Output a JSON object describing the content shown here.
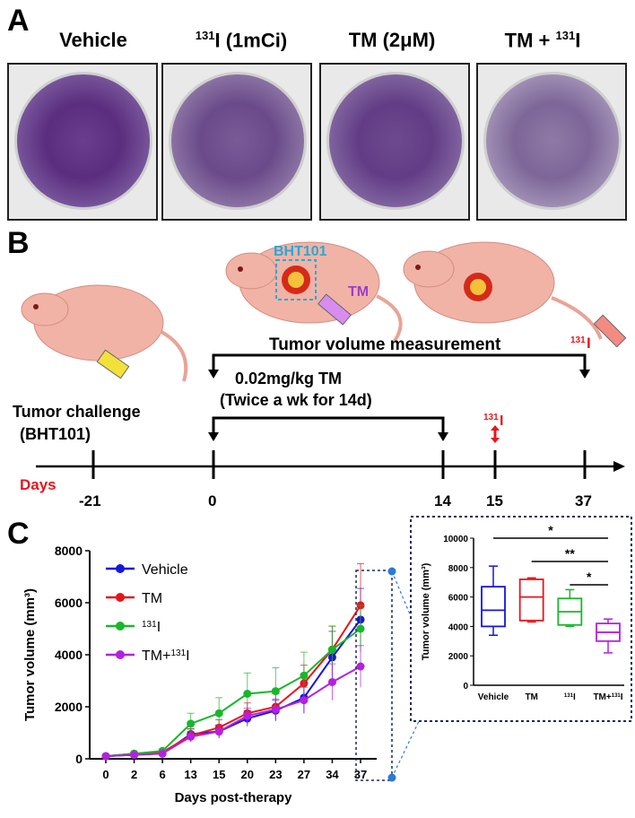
{
  "panelA": {
    "letter": "A",
    "columns": [
      {
        "title": "Vehicle",
        "sup": "",
        "post": ""
      },
      {
        "title": "",
        "sup": "131",
        "post": "I (1mCi)"
      },
      {
        "title": "TM (2μM)",
        "sup": "",
        "post": ""
      },
      {
        "title": "TM + ",
        "sup": "131",
        "post": "I"
      }
    ]
  },
  "panelB": {
    "letter": "B",
    "bht_label": "BHT101",
    "tm_label": "TM",
    "i131_mouse_sup": "131",
    "i131_mouse_post": "I",
    "measurement_label": "Tumor volume measurement",
    "dose_line1": "0.02mg/kg TM",
    "dose_line2": "(Twice a wk for 14d)",
    "challenge_line1": "Tumor challenge",
    "challenge_line2": "(BHT101)",
    "i131_arrow_sup": "131",
    "i131_arrow_post": "I",
    "days_label": "Days",
    "ticks": [
      "-21",
      "0",
      "14",
      "15",
      "37"
    ],
    "colors": {
      "days": "#e8141c",
      "bht": "#27a9d6",
      "tm": "#9b3fc8",
      "i131": "#e8141c"
    }
  },
  "panelC": {
    "letter": "C",
    "chart_data": [
      {
        "type": "line",
        "xlabel": "Days post-therapy",
        "ylabel": "Tumor volume (mm³)",
        "x": [
          0,
          2,
          6,
          13,
          15,
          20,
          23,
          27,
          34,
          37
        ],
        "ylim": [
          0,
          8000
        ],
        "yticks": [
          0,
          2000,
          4000,
          6000,
          8000
        ],
        "grid": false,
        "legend_position": "top-left",
        "series": [
          {
            "name": "Vehicle",
            "name_sup": "",
            "name_post": "",
            "color": "#1515e0",
            "values": [
              100,
              150,
              200,
              950,
              1050,
              1550,
              1850,
              2350,
              3900,
              5350
            ],
            "errors": [
              30,
              50,
              60,
              200,
              250,
              300,
              400,
              600,
              1000,
              1200
            ]
          },
          {
            "name": "TM",
            "name_sup": "",
            "name_post": "",
            "color": "#e8141c",
            "values": [
              100,
              200,
              250,
              900,
              1200,
              1750,
              2000,
              2900,
              4200,
              5900
            ],
            "errors": [
              30,
              50,
              60,
              250,
              300,
              400,
              500,
              700,
              900,
              1600
            ]
          },
          {
            "name": "",
            "name_sup": "131",
            "name_post": "I",
            "color": "#17b82a",
            "values": [
              100,
              200,
              300,
              1350,
              1750,
              2500,
              2600,
              3200,
              4200,
              5000
            ],
            "errors": [
              30,
              50,
              80,
              400,
              600,
              800,
              900,
              900,
              900,
              900
            ]
          },
          {
            "name": "TM+",
            "name_sup": "131",
            "name_post": "I",
            "color": "#b520e0",
            "values": [
              100,
              150,
              200,
              850,
              1050,
              1650,
              1900,
              2250,
              2950,
              3550
            ],
            "errors": [
              30,
              40,
              60,
              200,
              250,
              300,
              400,
              500,
              700,
              800
            ]
          }
        ]
      },
      {
        "type": "box",
        "ylabel": "Tumor volume (mm³)",
        "ylim": [
          0,
          10000
        ],
        "yticks": [
          0,
          2000,
          4000,
          6000,
          8000,
          10000
        ],
        "categories": [
          {
            "label": "Vehicle",
            "sup": "",
            "post": ""
          },
          {
            "label": "TM",
            "sup": "",
            "post": ""
          },
          {
            "label": "",
            "sup": "131",
            "post": "I"
          },
          {
            "label": "TM+",
            "sup": "131",
            "post": "I"
          }
        ],
        "boxes": [
          {
            "min": 3400,
            "q1": 4000,
            "median": 5100,
            "q3": 6700,
            "max": 8100,
            "color": "#1515e0"
          },
          {
            "min": 4300,
            "q1": 4400,
            "median": 6000,
            "q3": 7200,
            "max": 7300,
            "color": "#e8141c"
          },
          {
            "min": 4000,
            "q1": 4100,
            "median": 5000,
            "q3": 5900,
            "max": 6500,
            "color": "#17b82a"
          },
          {
            "min": 2200,
            "q1": 3000,
            "median": 3600,
            "q3": 4200,
            "max": 4500,
            "color": "#b520e0"
          }
        ],
        "significance": [
          {
            "from": 0,
            "to": 3,
            "label": "*"
          },
          {
            "from": 1,
            "to": 3,
            "label": "**"
          },
          {
            "from": 2,
            "to": 3,
            "label": "*"
          }
        ]
      }
    ]
  }
}
